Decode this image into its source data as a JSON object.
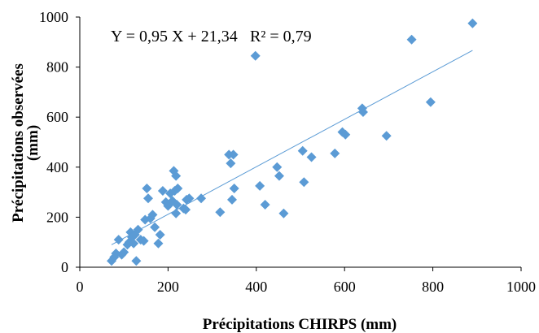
{
  "chart_data": {
    "type": "scatter",
    "xlabel": "Précipitations CHIRPS (mm)",
    "ylabel_line1": "Précipitations observées",
    "ylabel_line2": "(mm)",
    "xlim": [
      0,
      1000
    ],
    "ylim": [
      0,
      1000
    ],
    "xticks": [
      "0",
      "200",
      "400",
      "600",
      "800",
      "1000"
    ],
    "yticks": [
      "0",
      "200",
      "400",
      "600",
      "800",
      "1000"
    ],
    "xtick_values": [
      0,
      200,
      400,
      600,
      800,
      1000
    ],
    "ytick_values": [
      0,
      200,
      400,
      600,
      800,
      1000
    ],
    "grid": false,
    "equation": "Y = 0,95 X + 21,34",
    "r2": "R² = 0,79",
    "trendline": {
      "slope": 0.95,
      "intercept": 21.34,
      "x_range": [
        72,
        890
      ]
    },
    "marker_color": "#5b9bd5",
    "trendline_color": "#5b9bd5",
    "points": [
      [
        72,
        25
      ],
      [
        78,
        40
      ],
      [
        82,
        55
      ],
      [
        88,
        110
      ],
      [
        95,
        50
      ],
      [
        100,
        60
      ],
      [
        108,
        90
      ],
      [
        112,
        100
      ],
      [
        115,
        140
      ],
      [
        118,
        120
      ],
      [
        122,
        95
      ],
      [
        125,
        130
      ],
      [
        128,
        25
      ],
      [
        132,
        150
      ],
      [
        138,
        110
      ],
      [
        145,
        105
      ],
      [
        148,
        190
      ],
      [
        152,
        315
      ],
      [
        155,
        275
      ],
      [
        160,
        195
      ],
      [
        165,
        210
      ],
      [
        170,
        160
      ],
      [
        178,
        95
      ],
      [
        182,
        130
      ],
      [
        188,
        305
      ],
      [
        195,
        260
      ],
      [
        200,
        245
      ],
      [
        205,
        295
      ],
      [
        210,
        265
      ],
      [
        213,
        385
      ],
      [
        215,
        305
      ],
      [
        218,
        365
      ],
      [
        220,
        250
      ],
      [
        218,
        215
      ],
      [
        222,
        315
      ],
      [
        235,
        235
      ],
      [
        240,
        230
      ],
      [
        242,
        270
      ],
      [
        248,
        275
      ],
      [
        275,
        275
      ],
      [
        318,
        220
      ],
      [
        338,
        450
      ],
      [
        342,
        415
      ],
      [
        345,
        270
      ],
      [
        350,
        315
      ],
      [
        348,
        450
      ],
      [
        398,
        845
      ],
      [
        408,
        325
      ],
      [
        420,
        250
      ],
      [
        447,
        400
      ],
      [
        452,
        365
      ],
      [
        462,
        215
      ],
      [
        505,
        465
      ],
      [
        508,
        340
      ],
      [
        525,
        440
      ],
      [
        578,
        455
      ],
      [
        595,
        540
      ],
      [
        602,
        530
      ],
      [
        640,
        635
      ],
      [
        642,
        620
      ],
      [
        695,
        525
      ],
      [
        752,
        910
      ],
      [
        795,
        660
      ],
      [
        890,
        975
      ]
    ]
  }
}
